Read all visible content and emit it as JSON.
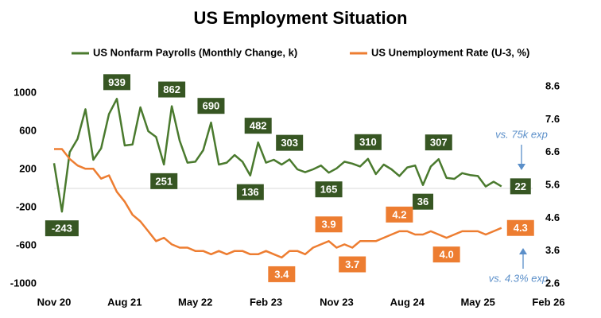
{
  "chart_data": {
    "type": "line",
    "title": "US Employment Situation",
    "x": [
      "Nov 20",
      "Dec 20",
      "Jan 21",
      "Feb 21",
      "Mar 21",
      "Apr 21",
      "May 21",
      "Jun 21",
      "Jul 21",
      "Aug 21",
      "Sep 21",
      "Oct 21",
      "Nov 21",
      "Dec 21",
      "Jan 22",
      "Feb 22",
      "Mar 22",
      "Apr 22",
      "May 22",
      "Jun 22",
      "Jul 22",
      "Aug 22",
      "Sep 22",
      "Oct 22",
      "Nov 22",
      "Dec 22",
      "Jan 23",
      "Feb 23",
      "Mar 23",
      "Apr 23",
      "May 23",
      "Jun 23",
      "Jul 23",
      "Aug 23",
      "Sep 23",
      "Oct 23",
      "Nov 23",
      "Dec 23",
      "Jan 24",
      "Feb 24",
      "Mar 24",
      "Apr 24",
      "May 24",
      "Jun 24",
      "Jul 24",
      "Aug 24",
      "Sep 24",
      "Oct 24",
      "Nov 24",
      "Dec 24",
      "Jan 25",
      "Feb 25",
      "Mar 25",
      "Apr 25",
      "May 25",
      "Jun 25",
      "Jul 25",
      "Aug 25"
    ],
    "series": [
      {
        "name": "US Nonfarm Payrolls (Monthly Change, k)",
        "color": "#4a7a2e",
        "label_color": "#375623",
        "values": [
          264,
          -243,
          380,
          520,
          830,
          300,
          420,
          780,
          939,
          450,
          460,
          850,
          600,
          540,
          251,
          862,
          500,
          270,
          280,
          400,
          690,
          250,
          270,
          350,
          280,
          136,
          482,
          270,
          300,
          250,
          303,
          200,
          170,
          200,
          240,
          165,
          210,
          280,
          260,
          230,
          310,
          150,
          250,
          200,
          130,
          220,
          240,
          36,
          230,
          307,
          110,
          100,
          160,
          140,
          130,
          20,
          70,
          22
        ],
        "value_labels": [
          null,
          "-243",
          null,
          null,
          null,
          null,
          null,
          null,
          "939",
          null,
          null,
          null,
          null,
          null,
          "251",
          "862",
          null,
          null,
          null,
          null,
          "690",
          null,
          null,
          null,
          null,
          "136",
          "482",
          null,
          null,
          null,
          "303",
          null,
          null,
          null,
          null,
          "165",
          null,
          null,
          null,
          null,
          "310",
          null,
          null,
          null,
          null,
          null,
          null,
          "36",
          null,
          "307",
          null,
          null,
          null,
          null,
          null,
          null,
          null,
          "22"
        ]
      },
      {
        "name": "US Unemployment Rate (U-3, %)",
        "color": "#ed7d31",
        "label_color": "#ed7d31",
        "axis": "y2",
        "values": [
          6.7,
          6.7,
          6.4,
          6.2,
          6.1,
          6.1,
          5.8,
          5.9,
          5.4,
          5.1,
          4.7,
          4.5,
          4.2,
          3.9,
          4.0,
          3.8,
          3.7,
          3.7,
          3.6,
          3.6,
          3.5,
          3.6,
          3.5,
          3.6,
          3.6,
          3.5,
          3.5,
          3.6,
          3.5,
          3.4,
          3.6,
          3.6,
          3.5,
          3.7,
          3.8,
          3.9,
          3.7,
          3.8,
          3.7,
          3.9,
          3.9,
          3.9,
          4.0,
          4.1,
          4.2,
          4.2,
          4.1,
          4.1,
          4.2,
          4.1,
          4.0,
          4.1,
          4.2,
          4.2,
          4.2,
          4.1,
          4.2,
          4.3
        ],
        "value_labels": [
          null,
          null,
          null,
          null,
          null,
          null,
          null,
          null,
          null,
          null,
          null,
          null,
          null,
          null,
          null,
          null,
          null,
          null,
          null,
          null,
          null,
          null,
          null,
          null,
          null,
          null,
          null,
          null,
          null,
          "3.4",
          null,
          null,
          null,
          null,
          null,
          "3.9",
          null,
          null,
          "3.7",
          null,
          null,
          null,
          null,
          null,
          "4.2",
          null,
          null,
          null,
          null,
          null,
          "4.0",
          null,
          null,
          null,
          null,
          null,
          null,
          "4.3"
        ]
      }
    ],
    "xlim": [
      "Nov 20",
      "Feb 26"
    ],
    "xticks": [
      "Nov 20",
      "Aug 21",
      "May 22",
      "Feb 23",
      "Nov 23",
      "Aug 24",
      "May 25",
      "Feb 26"
    ],
    "ylim": [
      -1000,
      1000
    ],
    "yticks": [
      -1000,
      -600,
      -200,
      200,
      600,
      1000
    ],
    "y2lim": [
      2.6,
      8.6
    ],
    "y2ticks": [
      2.6,
      3.6,
      4.6,
      5.6,
      6.6,
      7.6,
      8.6
    ],
    "annotations": [
      "vs. 75k exp",
      "vs. 4.3% exp"
    ],
    "legend": "top",
    "grid": false
  }
}
